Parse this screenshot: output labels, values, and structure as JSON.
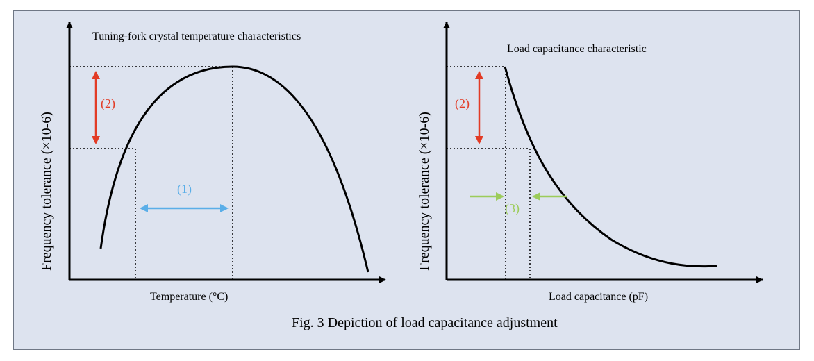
{
  "left_chart": {
    "title": "Tuning-fork crystal temperature characteristics",
    "ylabel": "Frequency tolerance (×10-6)",
    "xlabel": "Temperature (°C)",
    "marker_2": "(2)",
    "marker_1": "(1)"
  },
  "right_chart": {
    "title": "Load capacitance characteristic",
    "ylabel": "Frequency tolerance (×10-6)",
    "xlabel": "Load capacitance (pF)",
    "marker_2": "(2)",
    "marker_3": "(3)"
  },
  "caption": "Fig. 3 Depiction of load capacitance adjustment",
  "colors": {
    "background": "#dde3ef",
    "border": "#6f7785",
    "curve": "#000000",
    "red_arrow": "#e23b25",
    "blue_arrow": "#5aaee8",
    "green_arrow": "#9ccc5a"
  }
}
